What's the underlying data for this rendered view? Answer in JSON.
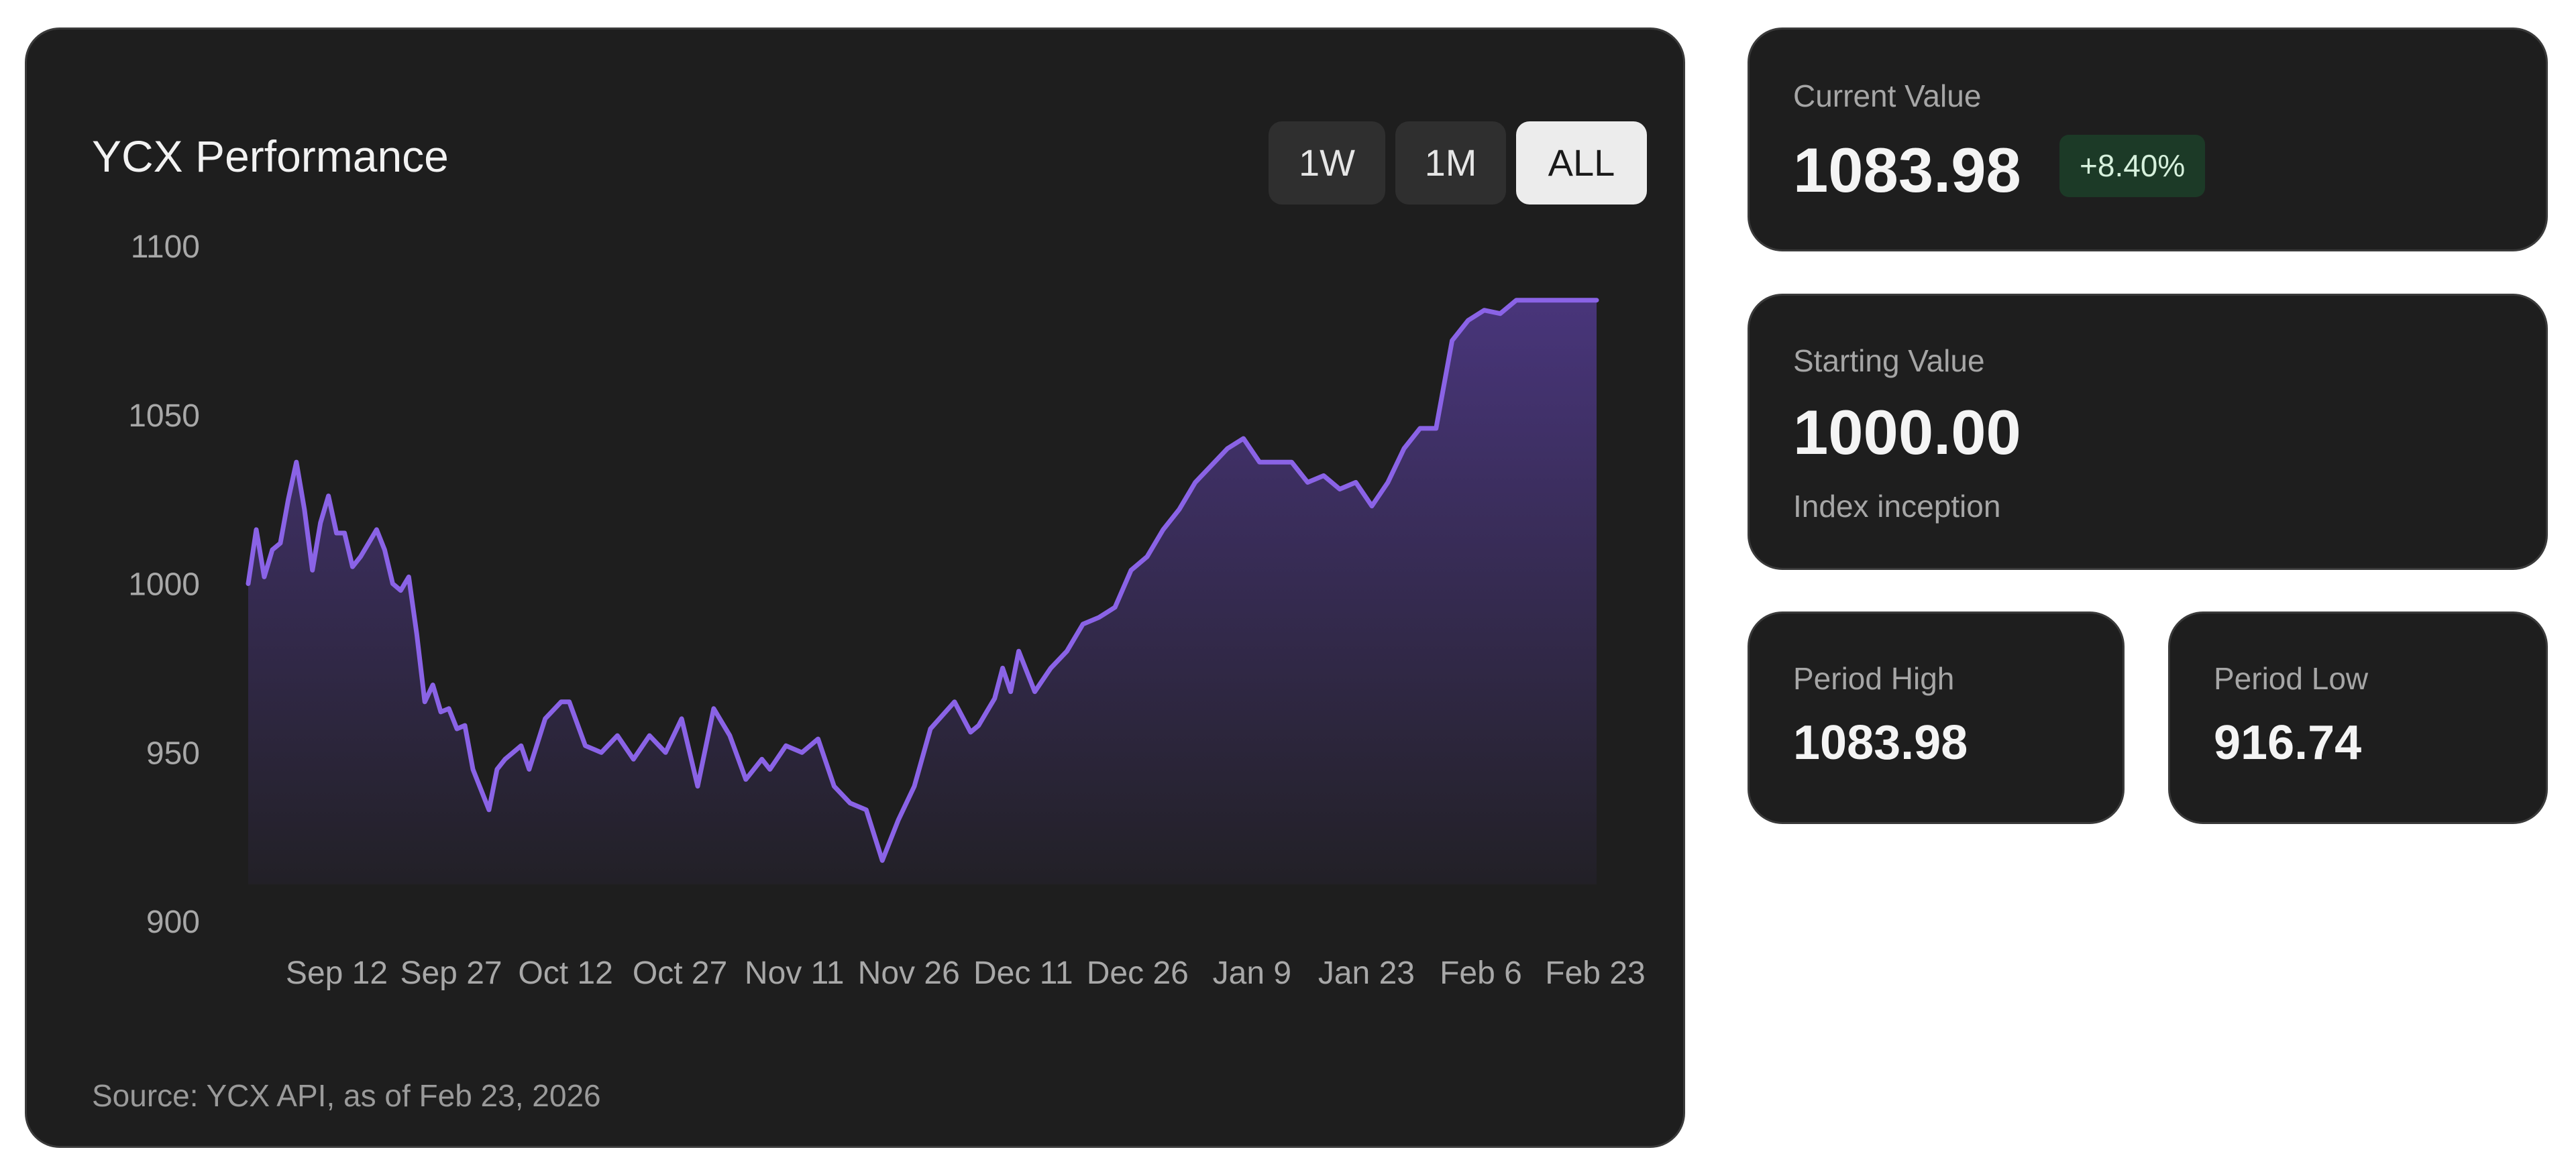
{
  "chart_data": {
    "type": "area",
    "title": "YCX Performance",
    "xlabel": "",
    "ylabel": "",
    "ylim": [
      900,
      1100
    ],
    "yticks": [
      900,
      950,
      1000,
      1050,
      1100
    ],
    "xtick_labels": [
      "Sep 12",
      "Sep 27",
      "Oct 12",
      "Oct 27",
      "Nov 11",
      "Nov 26",
      "Dec 11",
      "Dec 26",
      "Jan 9",
      "Jan 23",
      "Feb 6",
      "Feb 23"
    ],
    "grid": false,
    "legend": "none",
    "line_color": "#8a63e6",
    "series": [
      {
        "x": [
          "2025-09-08",
          "2025-09-09",
          "2025-09-10",
          "2025-09-11",
          "2025-09-12",
          "2025-09-13",
          "2025-09-14",
          "2025-09-15",
          "2025-09-16",
          "2025-09-17",
          "2025-09-18",
          "2025-09-19",
          "2025-09-20",
          "2025-09-21",
          "2025-09-22",
          "2025-09-23",
          "2025-09-24",
          "2025-09-25",
          "2025-09-26",
          "2025-09-27",
          "2025-09-28",
          "2025-09-29",
          "2025-09-30",
          "2025-10-01",
          "2025-10-02",
          "2025-10-03",
          "2025-10-04",
          "2025-10-05",
          "2025-10-06",
          "2025-10-08",
          "2025-10-09",
          "2025-10-10",
          "2025-10-11",
          "2025-10-12",
          "2025-10-13",
          "2025-10-15",
          "2025-10-17",
          "2025-10-18",
          "2025-10-20",
          "2025-10-22",
          "2025-10-24",
          "2025-10-26",
          "2025-10-28",
          "2025-10-30",
          "2025-11-01",
          "2025-11-03",
          "2025-11-05",
          "2025-11-07",
          "2025-11-09",
          "2025-11-11",
          "2025-11-12",
          "2025-11-14",
          "2025-11-16",
          "2025-11-18",
          "2025-11-20",
          "2025-11-22",
          "2025-11-24",
          "2025-11-26",
          "2025-11-28",
          "2025-11-30",
          "2025-12-02",
          "2025-12-05",
          "2025-12-07",
          "2025-12-08",
          "2025-12-09",
          "2025-12-10",
          "2025-12-11",
          "2025-12-12",
          "2025-12-13",
          "2025-12-15",
          "2025-12-17",
          "2025-12-19",
          "2025-12-21",
          "2025-12-23",
          "2025-12-25",
          "2025-12-27",
          "2025-12-29",
          "2025-12-31",
          "2026-01-02",
          "2026-01-04",
          "2026-01-06",
          "2026-01-08",
          "2026-01-10",
          "2026-01-12",
          "2026-01-14",
          "2026-01-16",
          "2026-01-18",
          "2026-01-20",
          "2026-01-22",
          "2026-01-24",
          "2026-01-26",
          "2026-01-28",
          "2026-01-30",
          "2026-02-01",
          "2026-02-03",
          "2026-02-05",
          "2026-02-07",
          "2026-02-09",
          "2026-02-11",
          "2026-02-13",
          "2026-02-15",
          "2026-02-17",
          "2026-02-19",
          "2026-02-21",
          "2026-02-22",
          "2026-02-23"
        ],
        "values": [
          1000,
          1016,
          1002,
          1010,
          1012,
          1025,
          1036,
          1022,
          1004,
          1018,
          1026,
          1015,
          1015,
          1005,
          1008,
          1012,
          1016,
          1010,
          1000,
          998,
          1002,
          985,
          965,
          970,
          962,
          963,
          957,
          958,
          945,
          933,
          945,
          948,
          950,
          952,
          945,
          960,
          965,
          965,
          952,
          950,
          955,
          948,
          955,
          950,
          960,
          940,
          963,
          955,
          942,
          948,
          945,
          952,
          950,
          954,
          940,
          935,
          933,
          918,
          930,
          940,
          957,
          965,
          956,
          958,
          962,
          966,
          975,
          968,
          980,
          968,
          975,
          980,
          988,
          990,
          993,
          1004,
          1008,
          1016,
          1022,
          1030,
          1035,
          1040,
          1043,
          1036,
          1036,
          1036,
          1030,
          1032,
          1028,
          1030,
          1023,
          1030,
          1040,
          1046,
          1046,
          1072,
          1078,
          1081,
          1080,
          1083.98,
          1083.98,
          1083.98,
          1083.98,
          1083.98,
          1083.98,
          1083.98
        ]
      }
    ],
    "source": "Source: YCX API, as of Feb 23, 2026"
  },
  "range_buttons": [
    {
      "label": "1W",
      "active": false
    },
    {
      "label": "1M",
      "active": false
    },
    {
      "label": "ALL",
      "active": true
    }
  ],
  "stats": {
    "current": {
      "label": "Current Value",
      "value": "1083.98",
      "change": "+8.40%",
      "change_color": "#1c3a27"
    },
    "starting": {
      "label": "Starting Value",
      "value": "1000.00",
      "note": "Index inception"
    },
    "high": {
      "label": "Period High",
      "value": "1083.98"
    },
    "low": {
      "label": "Period Low",
      "value": "916.74"
    }
  }
}
